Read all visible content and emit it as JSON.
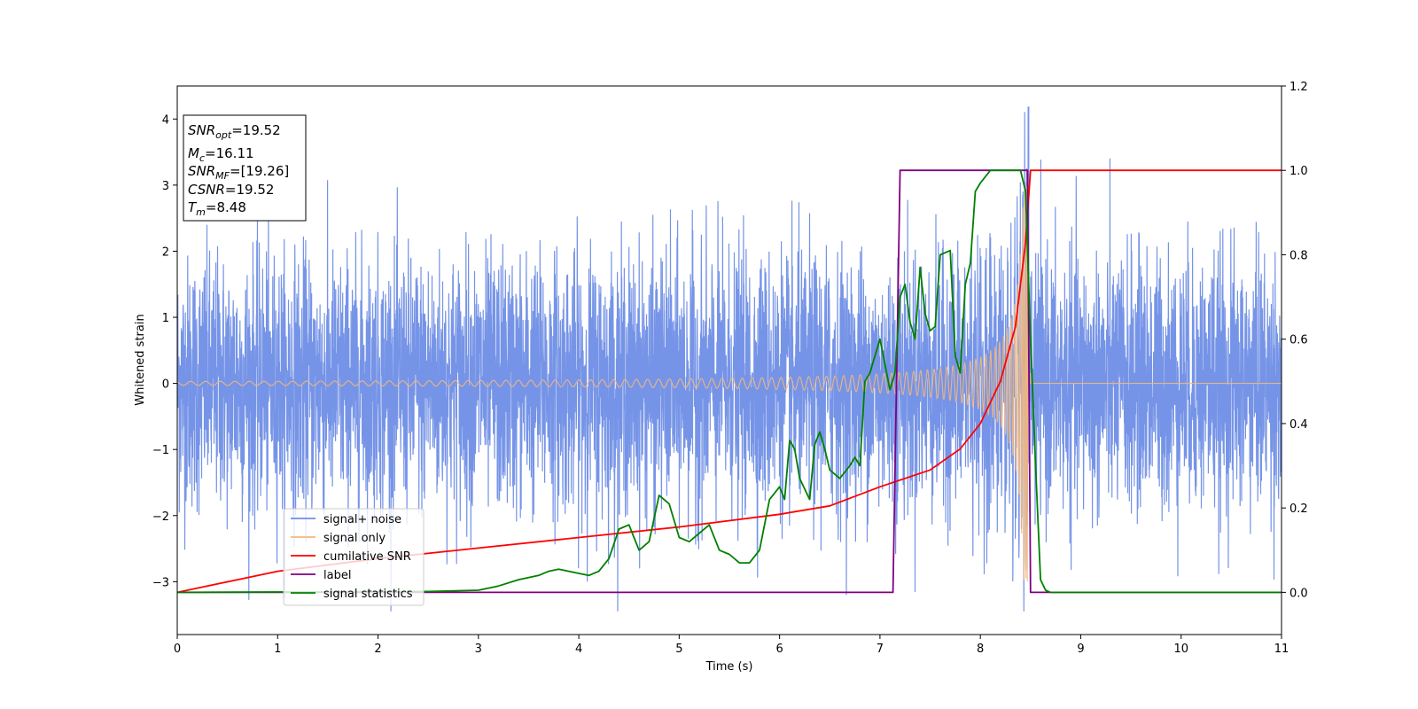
{
  "chart_data": {
    "type": "line",
    "xlabel": "Time (s)",
    "ylabel": "Whitened strain",
    "xlim": [
      0,
      11
    ],
    "ylim_left": [
      -3.8,
      4.5
    ],
    "ylim_right": [
      -0.1,
      1.2
    ],
    "x_ticks": [
      "0",
      "1",
      "2",
      "3",
      "4",
      "5",
      "6",
      "7",
      "8",
      "9",
      "10",
      "11"
    ],
    "y_left_ticks": [
      "−3",
      "−2",
      "−1",
      "0",
      "1",
      "2",
      "3",
      "4"
    ],
    "y_right_ticks": [
      "0.0",
      "0.2",
      "0.4",
      "0.6",
      "0.8",
      "1.0",
      "1.2"
    ],
    "grid": false,
    "legend_position": "lower-left",
    "annotation": {
      "lines": [
        {
          "base": "SNR",
          "sub": "opt",
          "rest": "=19.52"
        },
        {
          "base": "M",
          "sub": "c",
          "rest": "=16.11"
        },
        {
          "base": "SNR",
          "sub": "MF",
          "rest": "=[19.26]"
        },
        {
          "base": "CSNR",
          "sub": "",
          "rest": "=19.52"
        },
        {
          "base": "T",
          "sub": "m",
          "rest": "=8.48"
        }
      ]
    },
    "series": [
      {
        "name": "signal+ noise",
        "color": "#6f8ee6",
        "axis": "left",
        "description": "whitened strain, noise amplitude ~ ±1.6, peaks up to ~4.2 near 8.5 s",
        "noise_std": 0.95,
        "x_range": [
          0,
          11
        ]
      },
      {
        "name": "signal only",
        "color": "#f5b87a",
        "axis": "left",
        "chirp": {
          "amplitude_start": 0.03,
          "amplitude_peak": 3.0,
          "t_merger": 8.48,
          "x_range": [
            0,
            11
          ]
        }
      },
      {
        "name": "cumilative SNR",
        "color": "#ff0000",
        "axis": "right",
        "x": [
          0,
          1,
          2,
          3,
          4,
          5,
          6,
          6.5,
          7,
          7.5,
          7.8,
          8.0,
          8.2,
          8.35,
          8.45,
          8.5,
          11
        ],
        "y": [
          0.0,
          0.05,
          0.08,
          0.105,
          0.13,
          0.155,
          0.185,
          0.205,
          0.25,
          0.29,
          0.34,
          0.4,
          0.5,
          0.63,
          0.83,
          1.0,
          1.0
        ]
      },
      {
        "name": "label",
        "color": "#800080",
        "axis": "right",
        "x": [
          0,
          7.13,
          7.2,
          8.47,
          8.5,
          11
        ],
        "y": [
          0.0,
          0.0,
          1.0,
          1.0,
          0.0,
          0.0
        ]
      },
      {
        "name": "signal statistics",
        "color": "#008000",
        "axis": "right",
        "x": [
          0,
          2.5,
          3.0,
          3.2,
          3.4,
          3.6,
          3.7,
          3.8,
          3.9,
          4.0,
          4.1,
          4.2,
          4.3,
          4.4,
          4.5,
          4.6,
          4.7,
          4.8,
          4.9,
          5.0,
          5.1,
          5.2,
          5.3,
          5.4,
          5.5,
          5.6,
          5.7,
          5.8,
          5.9,
          6.0,
          6.05,
          6.1,
          6.15,
          6.2,
          6.3,
          6.35,
          6.4,
          6.45,
          6.5,
          6.6,
          6.7,
          6.75,
          6.8,
          6.85,
          6.9,
          7.0,
          7.1,
          7.15,
          7.2,
          7.25,
          7.3,
          7.35,
          7.4,
          7.45,
          7.5,
          7.55,
          7.6,
          7.7,
          7.75,
          7.8,
          7.85,
          7.9,
          7.95,
          8.0,
          8.1,
          8.2,
          8.3,
          8.4,
          8.45,
          8.5,
          8.55,
          8.6,
          8.65,
          8.7,
          9.0,
          11.0
        ],
        "y": [
          0.0,
          0.002,
          0.005,
          0.015,
          0.03,
          0.04,
          0.05,
          0.055,
          0.05,
          0.045,
          0.04,
          0.05,
          0.08,
          0.15,
          0.16,
          0.1,
          0.12,
          0.23,
          0.21,
          0.13,
          0.12,
          0.14,
          0.16,
          0.1,
          0.09,
          0.07,
          0.07,
          0.1,
          0.22,
          0.25,
          0.22,
          0.36,
          0.34,
          0.27,
          0.22,
          0.35,
          0.38,
          0.34,
          0.29,
          0.27,
          0.3,
          0.32,
          0.3,
          0.5,
          0.52,
          0.6,
          0.48,
          0.52,
          0.7,
          0.73,
          0.64,
          0.6,
          0.77,
          0.66,
          0.62,
          0.63,
          0.8,
          0.81,
          0.56,
          0.52,
          0.73,
          0.78,
          0.95,
          0.97,
          1.0,
          1.0,
          1.0,
          1.0,
          0.95,
          0.6,
          0.3,
          0.03,
          0.005,
          0.0,
          0.0,
          0.0
        ]
      }
    ]
  }
}
